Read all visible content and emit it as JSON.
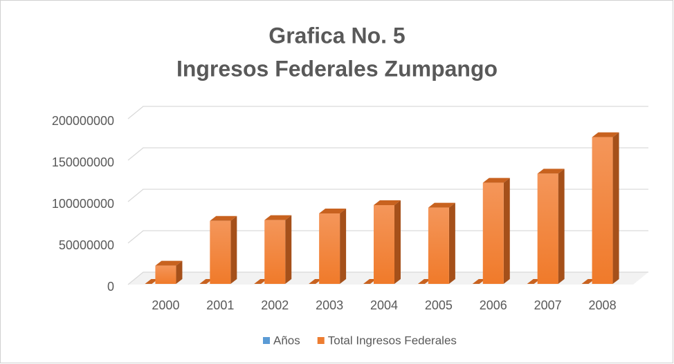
{
  "chart_data": {
    "type": "bar3d",
    "title": [
      "Grafica No. 5",
      "Ingresos Federales Zumpango"
    ],
    "categories": [
      "2000",
      "2001",
      "2002",
      "2003",
      "2004",
      "2005",
      "2006",
      "2007",
      "2008"
    ],
    "series": [
      {
        "name": "Años",
        "color": "#5b9bd5",
        "values": [
          2000,
          2001,
          2002,
          2003,
          2004,
          2005,
          2006,
          2007,
          2008
        ]
      },
      {
        "name": "Total Ingresos Federales",
        "color": "#ed7d31",
        "values": [
          22000000,
          76000000,
          77000000,
          85000000,
          95000000,
          92000000,
          122000000,
          133000000,
          177000000
        ]
      }
    ],
    "ylim": [
      0,
      200000000
    ],
    "yticks": [
      0,
      50000000,
      100000000,
      150000000,
      200000000
    ],
    "grid": true
  }
}
